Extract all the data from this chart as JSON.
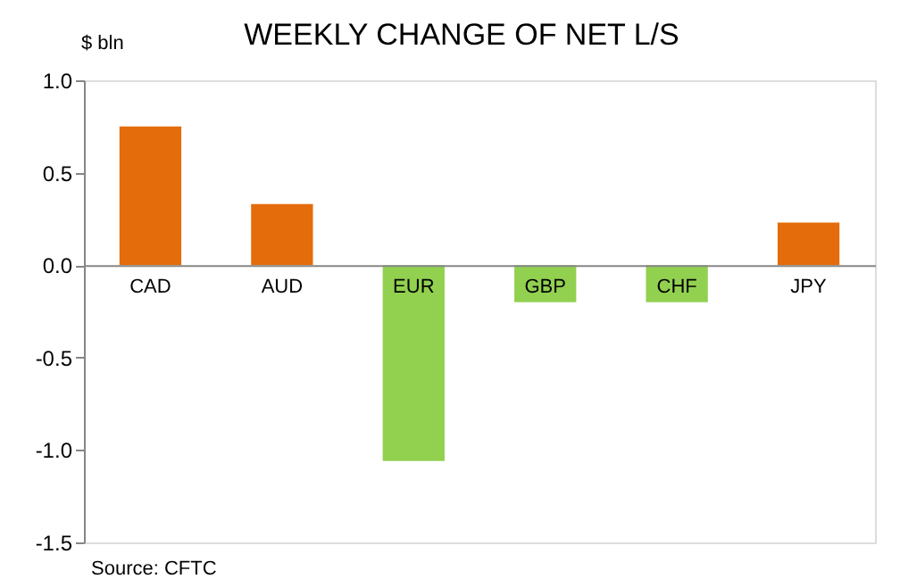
{
  "chart_data": {
    "type": "bar",
    "title": "WEEKLY CHANGE OF NET L/S",
    "ylabel": "$ bln",
    "categories": [
      "CAD",
      "AUD",
      "EUR",
      "GBP",
      "CHF",
      "JPY"
    ],
    "values": [
      0.75,
      0.33,
      -1.06,
      -0.2,
      -0.2,
      0.23
    ],
    "colors": [
      "#e46c0a",
      "#e46c0a",
      "#92d050",
      "#92d050",
      "#92d050",
      "#e46c0a"
    ],
    "ylim": [
      -1.5,
      1.0
    ],
    "yticks": [
      {
        "value": -1.5,
        "label": "-1.5"
      },
      {
        "value": -1.0,
        "label": "-1.0"
      },
      {
        "value": -0.5,
        "label": "-0.5"
      },
      {
        "value": 0,
        "label": "0.0"
      },
      {
        "value": 0.5,
        "label": "0.5"
      },
      {
        "value": 1.0,
        "label": "1.0"
      }
    ],
    "annotations": [
      "Source: CFTC"
    ],
    "grid": false
  }
}
